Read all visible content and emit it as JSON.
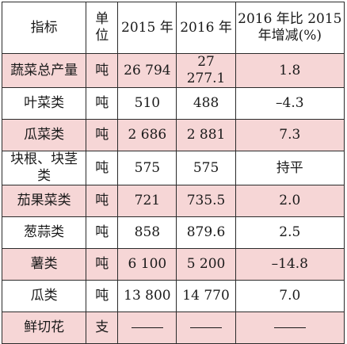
{
  "table": {
    "headers": {
      "indicator": "指标",
      "unit_line1": "单",
      "unit_line2": "位",
      "y2015": "2015 年",
      "y2016": "2016 年",
      "change_line1": "2016 年比 2015",
      "change_line2": "年增减(%)"
    },
    "rows": [
      {
        "indicator": "蔬菜总产量",
        "unit": "吨",
        "y2015": "26 794",
        "y2016": "27 277.1",
        "change": "1.8",
        "shaded": true
      },
      {
        "indicator": "叶菜类",
        "unit": "吨",
        "y2015": "510",
        "y2016": "488",
        "change": "–4.3",
        "shaded": false
      },
      {
        "indicator": "瓜菜类",
        "unit": "吨",
        "y2015": "2 686",
        "y2016": "2 881",
        "change": "7.3",
        "shaded": true
      },
      {
        "indicator": "块根、块茎类",
        "unit": "吨",
        "y2015": "575",
        "y2016": "575",
        "change": "持平",
        "shaded": false
      },
      {
        "indicator": "茄果菜类",
        "unit": "吨",
        "y2015": "721",
        "y2016": "735.5",
        "change": "2.0",
        "shaded": true
      },
      {
        "indicator": "葱蒜类",
        "unit": "吨",
        "y2015": "858",
        "y2016": "879.6",
        "change": "2.5",
        "shaded": false
      },
      {
        "indicator": "薯类",
        "unit": "吨",
        "y2015": "6 100",
        "y2016": "5 200",
        "change": "–14.8",
        "shaded": true
      },
      {
        "indicator": "瓜类",
        "unit": "吨",
        "y2015": "13 800",
        "y2016": "14 770",
        "change": "7.0",
        "shaded": false
      },
      {
        "indicator": "鲜切花",
        "unit": "支",
        "y2015": null,
        "y2016": null,
        "change": null,
        "shaded": true
      }
    ]
  },
  "colors": {
    "shaded_row": "#f6d6d6",
    "border": "#2b2b2b",
    "text": "#1a1a1a"
  }
}
